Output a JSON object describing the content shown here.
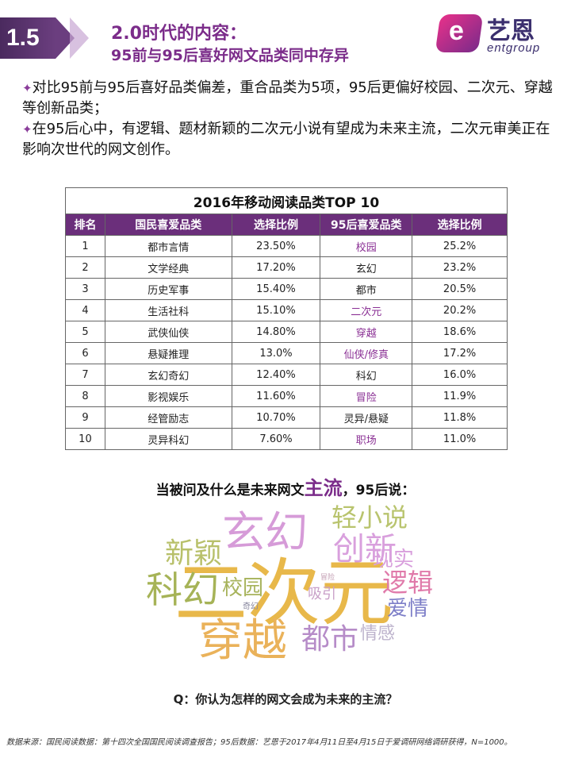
{
  "header": {
    "section_number": "1.5",
    "title_line1": "2.0时代的内容：",
    "title_line2": "95前与95后喜好网文品类同中存异",
    "logo": {
      "icon": "entgroup-e-logo",
      "text_cn": "艺恩",
      "text_en": "entgroup",
      "colors": [
        "#e8318a",
        "#7a2b8a",
        "#3b2f6e"
      ]
    }
  },
  "bullets": [
    {
      "marker": "✦",
      "text": "对比95前与95后喜好品类偏差，重合品类为5项，95后更偏好校园、二次元、穿越等创新品类；"
    },
    {
      "marker": "✦",
      "text": "在95后心中，有逻辑、题材新颖的二次元小说有望成为未来主流，二次元审美正在影响次世代的网文创作。"
    }
  ],
  "table": {
    "caption": "2016年移动阅读品类TOP 10",
    "headers": [
      "排名",
      "国民喜爱品类",
      "选择比例",
      "95后喜爱品类",
      "选择比例"
    ],
    "header_color": "#6b2f7b",
    "highlight_color": "#8a2f94",
    "rows": [
      {
        "rank": "1",
        "cat": "都市言情",
        "pct": "23.50%",
        "cat95": "校园",
        "pct95": "25.2%",
        "hl": true
      },
      {
        "rank": "2",
        "cat": "文学经典",
        "pct": "17.20%",
        "cat95": "玄幻",
        "pct95": "23.2%",
        "hl": false
      },
      {
        "rank": "3",
        "cat": "历史军事",
        "pct": "15.40%",
        "cat95": "都市",
        "pct95": "20.5%",
        "hl": false
      },
      {
        "rank": "4",
        "cat": "生活社科",
        "pct": "15.10%",
        "cat95": "二次元",
        "pct95": "20.2%",
        "hl": true
      },
      {
        "rank": "5",
        "cat": "武侠仙侠",
        "pct": "14.80%",
        "cat95": "穿越",
        "pct95": "18.6%",
        "hl": true
      },
      {
        "rank": "6",
        "cat": "悬疑推理",
        "pct": "13.0%",
        "cat95": "仙侠/修真",
        "pct95": "17.2%",
        "hl": true
      },
      {
        "rank": "7",
        "cat": "玄幻奇幻",
        "pct": "12.40%",
        "cat95": "科幻",
        "pct95": "16.0%",
        "hl": false
      },
      {
        "rank": "8",
        "cat": "影视娱乐",
        "pct": "11.60%",
        "cat95": "冒险",
        "pct95": "11.9%",
        "hl": true
      },
      {
        "rank": "9",
        "cat": "经管励志",
        "pct": "10.70%",
        "cat95": "灵异/悬疑",
        "pct95": "11.8%",
        "hl": false
      },
      {
        "rank": "10",
        "cat": "灵异科幻",
        "pct": "7.60%",
        "cat95": "职场",
        "pct95": "11.0%",
        "hl": true
      }
    ]
  },
  "prompt": {
    "before": "当被问及什么是未来网文",
    "emphasis": "主流",
    "after": "，95后说："
  },
  "word_cloud": [
    {
      "text": "二次元",
      "color": "#e8b84a"
    },
    {
      "text": "玄幻",
      "color": "#d69bd8"
    },
    {
      "text": "穿越",
      "color": "#eab25a"
    },
    {
      "text": "创新",
      "color": "#d9a0dd"
    },
    {
      "text": "科幻",
      "color": "#a6b357"
    },
    {
      "text": "新颖",
      "color": "#b8c06a"
    },
    {
      "text": "轻小说",
      "color": "#b9c46e"
    },
    {
      "text": "逻辑",
      "color": "#e07aaa"
    },
    {
      "text": "都市",
      "color": "#b68cc8"
    },
    {
      "text": "现实",
      "color": "#d9a0dd"
    },
    {
      "text": "校园",
      "color": "#a7b35b"
    },
    {
      "text": "爱情",
      "color": "#7e7fc8"
    },
    {
      "text": "情感",
      "color": "#bdb3cc"
    },
    {
      "text": "吸引",
      "color": "#c9a0c8"
    },
    {
      "text": "奇幻",
      "color": "#8a89a0"
    },
    {
      "text": "冒险",
      "color": "#c4a0b4"
    }
  ],
  "question": "Q：你认为怎样的网文会成为未来的主流？",
  "source": "数据来源：国民阅读数据：第十四次全国国民阅读调查报告；95后数据：艺恩于2017年4月11日至4月15日于爱调研网络调研获得，N=1000。"
}
